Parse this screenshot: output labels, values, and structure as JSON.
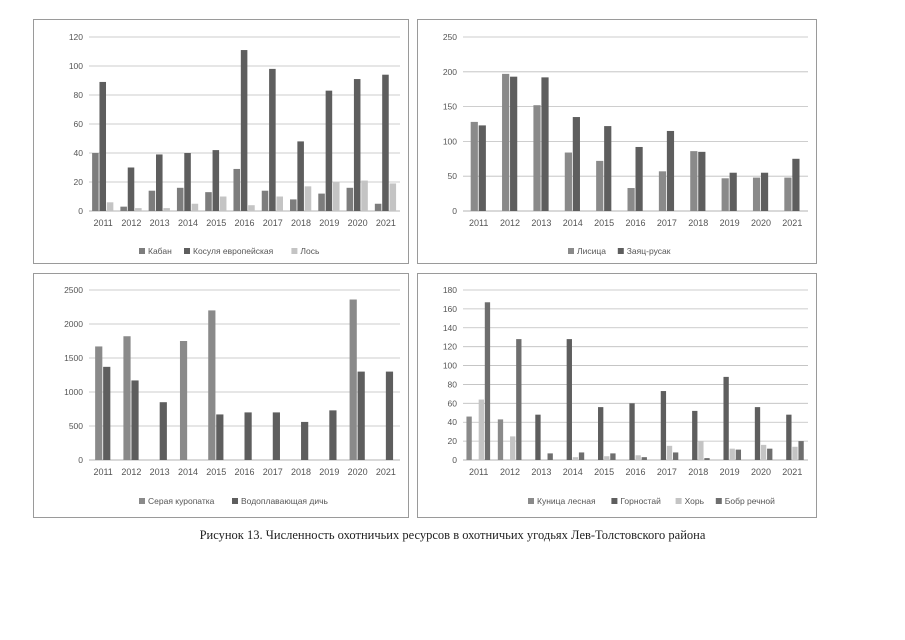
{
  "caption": "Рисунок 13. Численность охотничьих ресурсов в охотничьих угодьях Лев-Толстовского района",
  "colors": {
    "grid": "#bdbdbd",
    "axis": "#9a9a9a",
    "text": "#555555"
  },
  "chart_data": [
    {
      "type": "bar",
      "categories": [
        "2011",
        "2012",
        "2013",
        "2014",
        "2015",
        "2016",
        "2017",
        "2018",
        "2019",
        "2020",
        "2021"
      ],
      "ylim": [
        0,
        120
      ],
      "yticks": [
        "0",
        "20",
        "40",
        "60",
        "80",
        "100",
        "120"
      ],
      "legend_position": "bottom",
      "series": [
        {
          "name": "Кабан",
          "color": "#7d7d7d",
          "values": [
            40,
            3,
            14,
            16,
            13,
            29,
            14,
            8,
            12,
            16,
            5
          ]
        },
        {
          "name": "Косуля европейская",
          "color": "#5e5e5e",
          "values": [
            89,
            30,
            39,
            40,
            42,
            111,
            98,
            48,
            83,
            91,
            94
          ]
        },
        {
          "name": "Лось",
          "color": "#c4c4c4",
          "values": [
            6,
            2,
            2,
            5,
            10,
            4,
            10,
            17,
            20,
            21,
            19
          ]
        }
      ]
    },
    {
      "type": "bar",
      "categories": [
        "2011",
        "2012",
        "2013",
        "2014",
        "2015",
        "2016",
        "2017",
        "2018",
        "2019",
        "2020",
        "2021"
      ],
      "ylim": [
        0,
        250
      ],
      "yticks": [
        "0",
        "50",
        "100",
        "150",
        "200",
        "250"
      ],
      "legend_position": "bottom",
      "series": [
        {
          "name": "Лисица",
          "color": "#8a8a8a",
          "values": [
            128,
            197,
            152,
            84,
            72,
            33,
            57,
            86,
            47,
            48,
            48
          ]
        },
        {
          "name": "Заяц-русак",
          "color": "#5e5e5e",
          "values": [
            123,
            193,
            192,
            135,
            122,
            92,
            115,
            85,
            55,
            55,
            75
          ]
        }
      ]
    },
    {
      "type": "bar",
      "categories": [
        "2011",
        "2012",
        "2013",
        "2014",
        "2015",
        "2016",
        "2017",
        "2018",
        "2019",
        "2020",
        "2021"
      ],
      "ylim": [
        0,
        2500
      ],
      "yticks": [
        "0",
        "500",
        "1000",
        "1500",
        "2000",
        "2500"
      ],
      "legend_position": "bottom",
      "series": [
        {
          "name": "Серая куропатка",
          "color": "#8a8a8a",
          "values": [
            1670,
            1820,
            0,
            1750,
            2200,
            0,
            0,
            0,
            0,
            2360,
            0
          ]
        },
        {
          "name": "Водоплавающая дичь",
          "color": "#5e5e5e",
          "values": [
            1370,
            1170,
            850,
            0,
            670,
            700,
            700,
            560,
            730,
            1300,
            1300
          ]
        }
      ]
    },
    {
      "type": "bar",
      "categories": [
        "2011",
        "2012",
        "2013",
        "2014",
        "2015",
        "2016",
        "2017",
        "2018",
        "2019",
        "2020",
        "2021"
      ],
      "ylim": [
        0,
        180
      ],
      "yticks": [
        "0",
        "20",
        "40",
        "60",
        "80",
        "100",
        "120",
        "140",
        "160",
        "180"
      ],
      "legend_position": "bottom",
      "series": [
        {
          "name": "Куница лесная",
          "color": "#8a8a8a",
          "values": [
            46,
            43,
            0,
            0,
            0,
            0,
            0,
            0,
            0,
            0,
            0
          ]
        },
        {
          "name": "Горностай",
          "color": "#5e5e5e",
          "values": [
            0,
            0,
            48,
            128,
            56,
            60,
            73,
            52,
            88,
            56,
            48
          ]
        },
        {
          "name": "Хорь",
          "color": "#c4c4c4",
          "values": [
            64,
            25,
            0,
            3,
            4,
            5,
            15,
            20,
            12,
            16,
            14
          ]
        },
        {
          "name": "Бобр речной",
          "color": "#6e6e6e",
          "values": [
            167,
            128,
            7,
            8,
            7,
            3,
            8,
            2,
            11,
            12,
            20
          ]
        }
      ]
    }
  ]
}
